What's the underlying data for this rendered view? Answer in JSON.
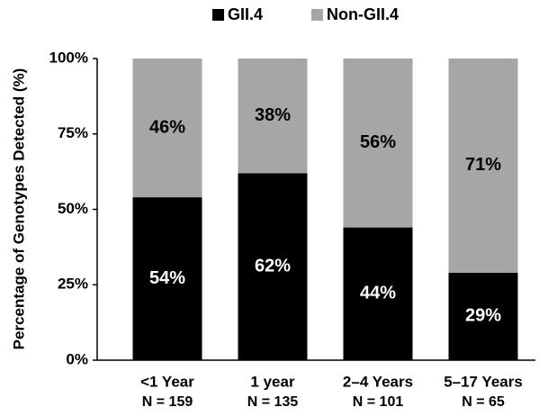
{
  "chart_data": {
    "type": "stacked_bar",
    "y_label": "Percentage of Genotypes Detected (%)",
    "categories": [
      "<1 Year",
      "1 year",
      "2–4 Years",
      "5–17 Years"
    ],
    "category_counts": [
      "N = 159",
      "N = 135",
      "N = 101",
      "N = 65"
    ],
    "series": [
      {
        "name": "GII.4",
        "color": "#000000",
        "values": [
          54,
          62,
          44,
          29
        ],
        "value_labels": [
          "54%",
          "62%",
          "44%",
          "29%"
        ],
        "label_color": "#ffffff"
      },
      {
        "name": "Non-GII.4",
        "color": "#a6a6a6",
        "values": [
          46,
          38,
          56,
          71
        ],
        "value_labels": [
          "46%",
          "38%",
          "56%",
          "71%"
        ],
        "label_color": "#000000"
      }
    ],
    "ylim": [
      0,
      100
    ],
    "yticks": [
      {
        "value": 0,
        "label": "0%"
      },
      {
        "value": 25,
        "label": "25%"
      },
      {
        "value": 50,
        "label": "50%"
      },
      {
        "value": 75,
        "label": "75%"
      },
      {
        "value": 100,
        "label": "100%"
      }
    ],
    "legend": "top"
  }
}
